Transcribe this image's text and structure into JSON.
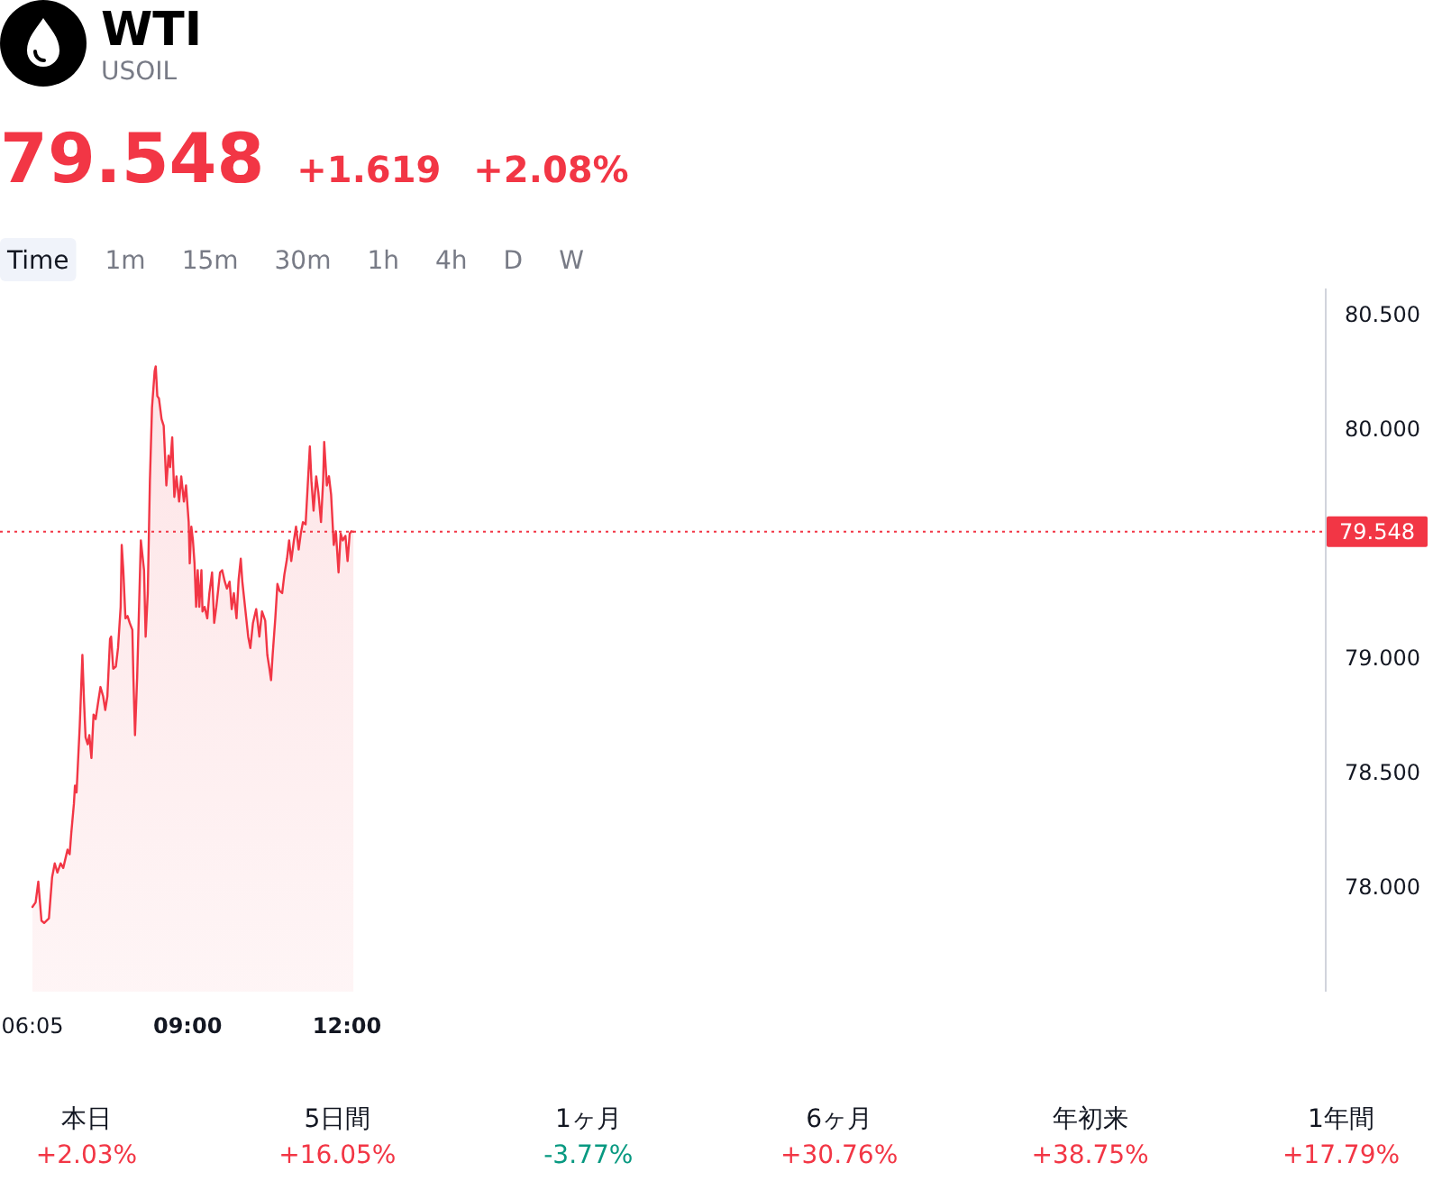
{
  "chart_data": [
    {
      "type": "area",
      "title": "WTI",
      "subtitle": "USOIL",
      "annotations": [
        "79.548",
        "+1.619",
        "+2.08%"
      ],
      "color": "#f23645",
      "x": [
        6.08,
        6.14,
        6.19,
        6.25,
        6.3,
        6.39,
        6.45,
        6.5,
        6.55,
        6.61,
        6.66,
        6.7,
        6.74,
        6.78,
        6.81,
        6.86,
        6.88,
        6.91,
        6.97,
        7.02,
        7.05,
        7.08,
        7.12,
        7.15,
        7.19,
        7.23,
        7.27,
        7.32,
        7.36,
        7.41,
        7.45,
        7.49,
        7.54,
        7.56,
        7.6,
        7.65,
        7.69,
        7.74,
        7.76,
        7.79,
        7.83,
        7.87,
        7.91,
        7.96,
        7.98,
        8.01,
        8.05,
        8.12,
        8.18,
        8.21,
        8.25,
        8.29,
        8.33,
        8.38,
        8.4,
        8.43,
        8.46,
        8.51,
        8.55,
        8.6,
        8.64,
        8.67,
        8.71,
        8.75,
        8.79,
        8.84,
        8.88,
        8.93,
        8.97,
        9.02,
        9.04,
        9.07,
        9.1,
        9.13,
        9.16,
        9.19,
        9.22,
        9.26,
        9.28,
        9.32,
        9.37,
        9.41,
        9.46,
        9.5,
        9.54,
        9.61,
        9.65,
        9.7,
        9.74,
        9.79,
        9.83,
        9.87,
        9.92,
        9.96,
        10.0,
        10.03,
        10.14,
        10.18,
        10.23,
        10.29,
        10.35,
        10.4,
        10.46,
        10.5,
        10.54,
        10.57,
        10.6,
        10.65,
        10.69,
        10.73,
        10.78,
        10.82,
        10.87,
        10.91,
        10.95,
        11.0,
        11.04,
        11.09,
        11.13,
        11.17,
        11.22,
        11.26,
        11.3,
        11.33,
        11.37,
        11.42,
        11.46,
        11.51,
        11.55,
        11.57,
        11.62,
        11.66,
        11.7,
        11.75,
        11.79,
        11.84,
        11.88,
        11.92,
        11.97,
        12.01,
        12.05,
        12.08,
        12.12
      ],
      "values": [
        77.91,
        77.93,
        78.02,
        77.85,
        77.84,
        77.86,
        78.04,
        78.1,
        78.06,
        78.1,
        78.08,
        78.12,
        78.16,
        78.14,
        78.23,
        78.36,
        78.44,
        78.41,
        78.7,
        79.01,
        78.81,
        78.65,
        78.62,
        78.66,
        78.56,
        78.75,
        78.73,
        78.81,
        78.87,
        78.83,
        78.77,
        78.83,
        79.08,
        79.09,
        78.95,
        78.96,
        79.04,
        79.22,
        79.49,
        79.38,
        79.17,
        79.18,
        79.15,
        79.12,
        78.91,
        78.66,
        78.91,
        79.51,
        79.38,
        79.09,
        79.28,
        79.77,
        80.09,
        80.25,
        80.27,
        80.14,
        80.13,
        80.04,
        80.01,
        79.75,
        79.88,
        79.83,
        79.96,
        79.7,
        79.79,
        79.68,
        79.79,
        79.68,
        79.75,
        79.59,
        79.41,
        79.57,
        79.51,
        79.41,
        79.22,
        79.38,
        79.22,
        79.38,
        79.2,
        79.22,
        79.17,
        79.28,
        79.37,
        79.15,
        79.22,
        79.37,
        79.38,
        79.33,
        79.3,
        79.33,
        79.21,
        79.28,
        79.17,
        79.34,
        79.43,
        79.33,
        79.09,
        79.04,
        79.15,
        79.21,
        79.09,
        79.2,
        79.16,
        79.01,
        78.95,
        78.9,
        79.01,
        79.17,
        79.32,
        79.29,
        79.28,
        79.36,
        79.43,
        79.51,
        79.42,
        79.51,
        79.57,
        79.47,
        79.54,
        79.59,
        79.58,
        79.75,
        79.92,
        79.77,
        79.64,
        79.79,
        79.72,
        79.59,
        79.77,
        79.94,
        79.75,
        79.79,
        79.71,
        79.49,
        79.55,
        79.37,
        79.54,
        79.51,
        79.53,
        79.42,
        79.54,
        79.55,
        79.548
      ],
      "xlim": [
        6.08,
        30.4
      ],
      "xticks": [
        {
          "value": 6.08,
          "label": "06:05"
        },
        {
          "value": 9,
          "label": "09:00"
        },
        {
          "value": 12,
          "label": "12:00"
        }
      ],
      "ylim": [
        77.54,
        80.61
      ],
      "yticks": [
        {
          "value": 78,
          "label": "78.000"
        },
        {
          "value": 78.5,
          "label": "78.500"
        },
        {
          "value": 79,
          "label": "79.000"
        },
        {
          "value": 80,
          "label": "80.000"
        },
        {
          "value": 80.5,
          "label": "80.500"
        }
      ],
      "ref_lines": [
        {
          "axis": "y",
          "value": 79.548,
          "label": "79.548",
          "color": "#f23645",
          "line_style": "dotted"
        }
      ]
    },
    {
      "type": "other",
      "annotations": [
        "Time",
        "1m",
        "15m",
        "30m",
        "1h",
        "4h",
        "D",
        "W"
      ]
    },
    {
      "type": "other",
      "categories": [
        "本日",
        "5日間",
        "1ヶ月",
        "6ヶ月",
        "年初来",
        "1年間"
      ],
      "value_labels": [
        "+2.03%",
        "+16.05%",
        "-3.77%",
        "+30.76%",
        "+38.75%",
        "+17.79%"
      ],
      "colors": [
        "#f23645",
        "#f23645",
        "#089981",
        "#f23645",
        "#f23645",
        "#f23645"
      ]
    }
  ]
}
